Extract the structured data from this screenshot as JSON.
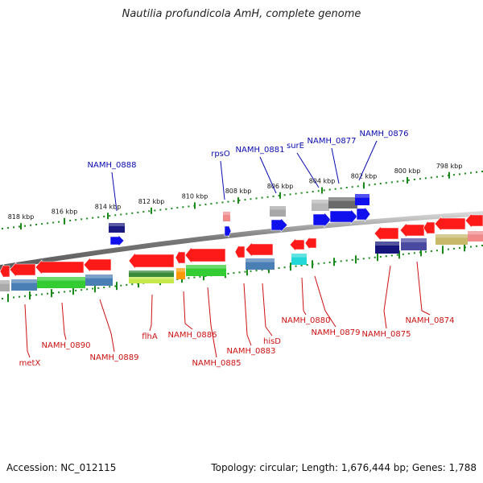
{
  "title": "Nautilia profundicola AmH, complete genome",
  "footer": {
    "accession": "Accession: NC_012115",
    "summary": "Topology: circular; Length: 1,676,444 bp; Genes: 1,788"
  },
  "colors": {
    "forward_label": "#0a0ab0",
    "reverse_label": "#cc1111",
    "tick": "#1a8a1a",
    "backbone": "#888888"
  },
  "ruler": {
    "ticks": [
      "818 kbp",
      "816 kbp",
      "814 kbp",
      "812 kbp",
      "810 kbp",
      "808 kbp",
      "806 kbp",
      "804 kbp",
      "802 kbp",
      "800 kbp",
      "798 kbp"
    ]
  },
  "gene_labels": {
    "forward": [
      "NAMH_0888",
      "rpsO",
      "NAMH_0881",
      "surE",
      "NAMH_0877",
      "NAMH_0876"
    ],
    "reverse": [
      "metX",
      "NAMH_0890",
      "NAMH_0889",
      "flhA",
      "NAMH_0886",
      "NAMH_0885",
      "NAMH_0883",
      "hisD",
      "NAMH_0880",
      "NAMH_0879",
      "NAMH_0875",
      "NAMH_0874"
    ]
  }
}
